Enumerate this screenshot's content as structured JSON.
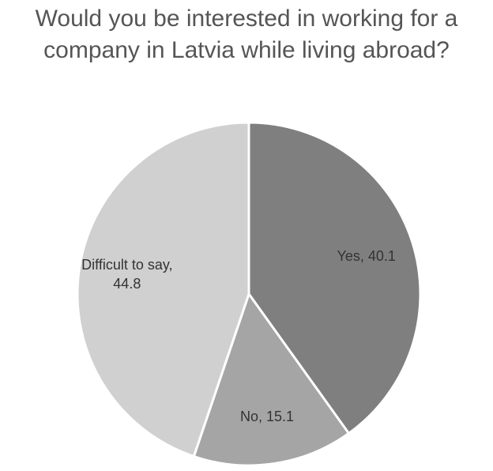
{
  "chart_data": {
    "type": "pie",
    "title": "Would you be interested in working for a company in Latvia while living abroad?",
    "categories": [
      "Yes",
      "No",
      "Difficult to say"
    ],
    "values": [
      40.1,
      15.1,
      44.8
    ],
    "value_labels": [
      "Yes, 40.1",
      "No, 15.1",
      "Difficult to say, 44.8"
    ],
    "colors": [
      "#7f7f7f",
      "#a5a5a5",
      "#d0d0d0"
    ]
  }
}
